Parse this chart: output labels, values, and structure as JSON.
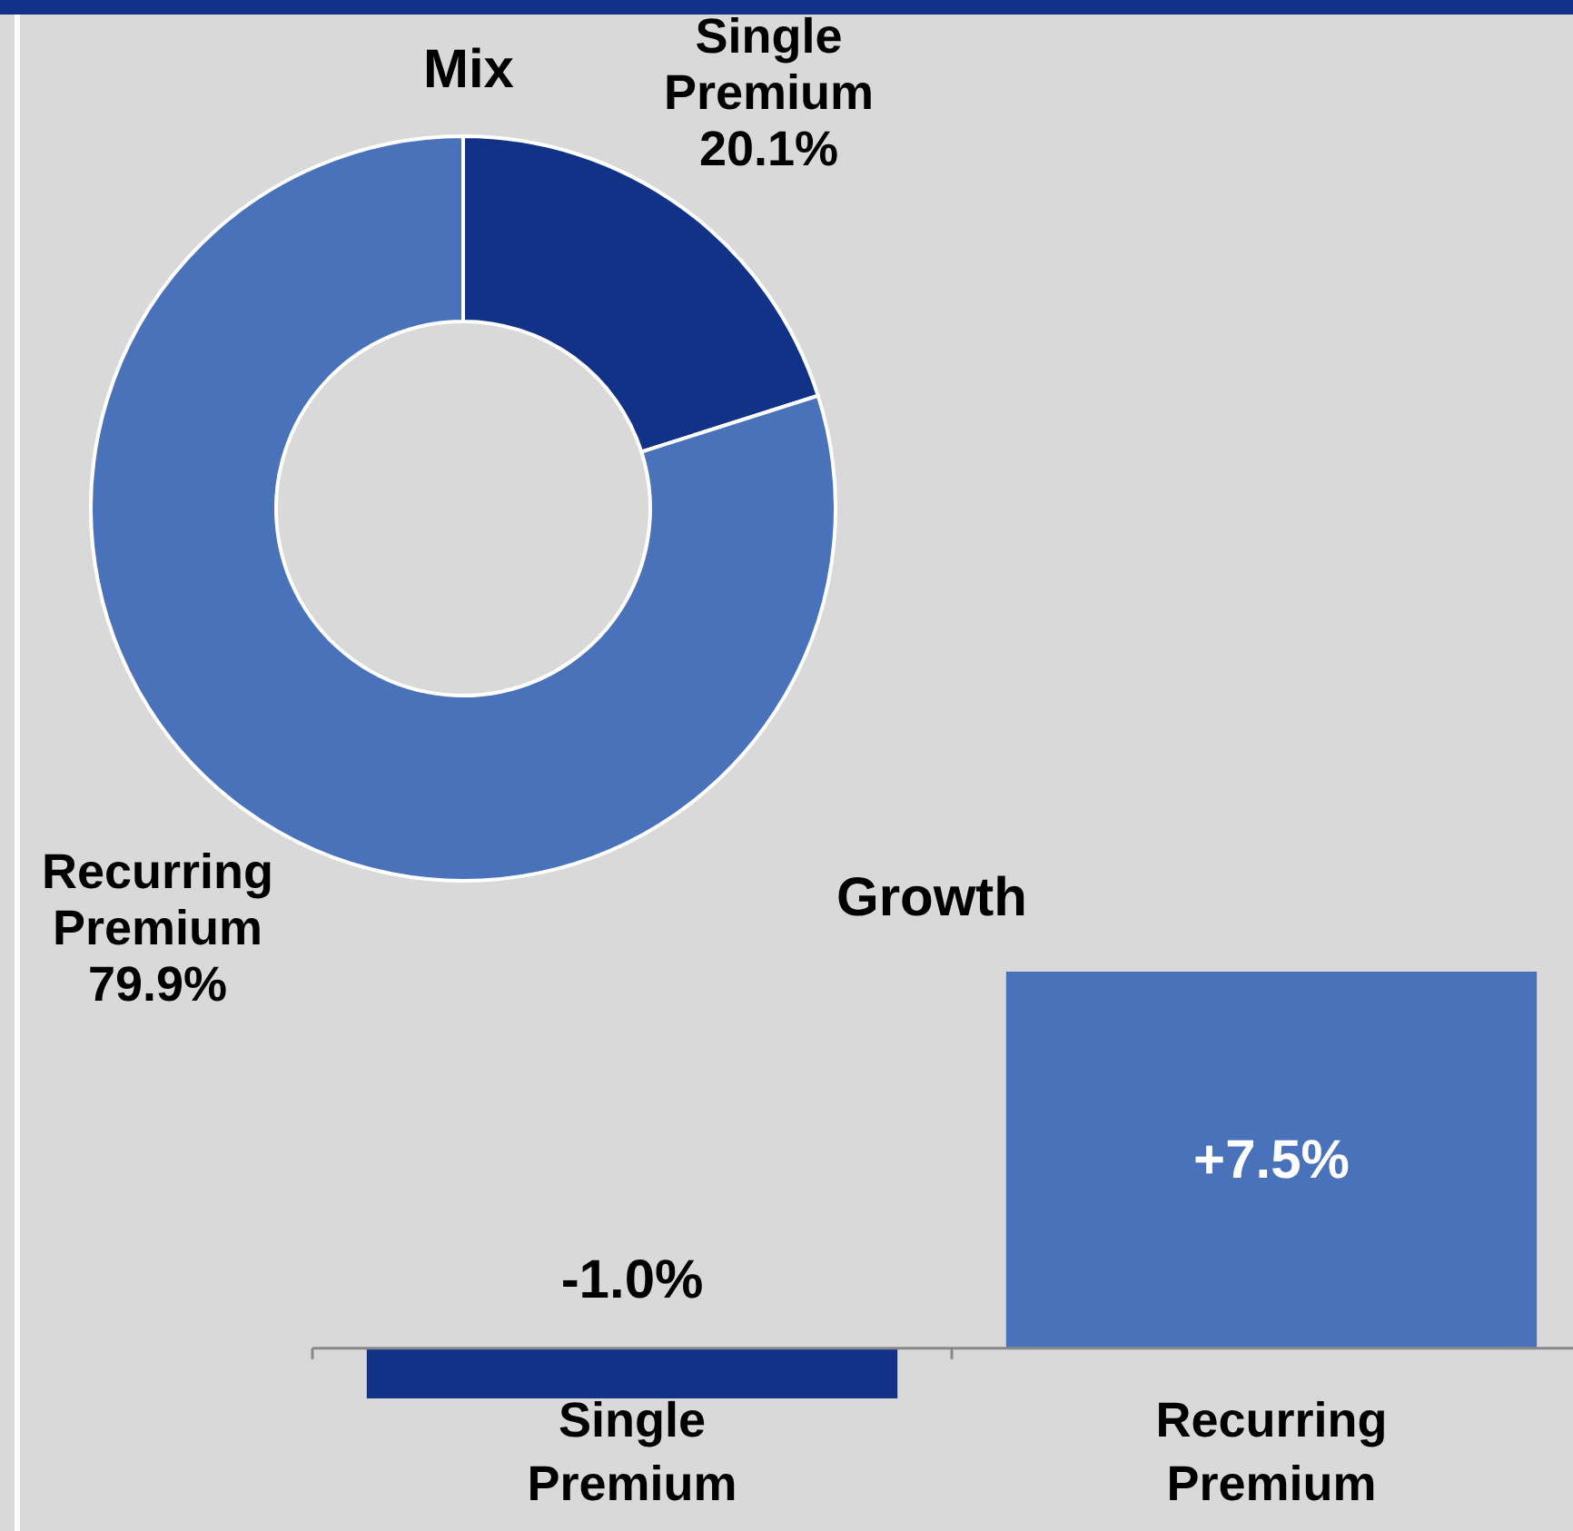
{
  "chart_data": [
    {
      "type": "donut",
      "title": "Mix",
      "categories": [
        "Single Premium",
        "Recurring Premium"
      ],
      "values": [
        20.1,
        79.9
      ],
      "colors": [
        "#123288",
        "#4a72bb"
      ],
      "value_labels": [
        "20.1%",
        "79.9%"
      ]
    },
    {
      "type": "bar",
      "title": "Growth",
      "categories": [
        "Single Premium",
        "Recurring Premium"
      ],
      "values": [
        -1.0,
        7.5
      ],
      "colors": [
        "#123288",
        "#4a72bb"
      ],
      "value_labels": [
        "-1.0%",
        "+7.5%"
      ]
    }
  ]
}
